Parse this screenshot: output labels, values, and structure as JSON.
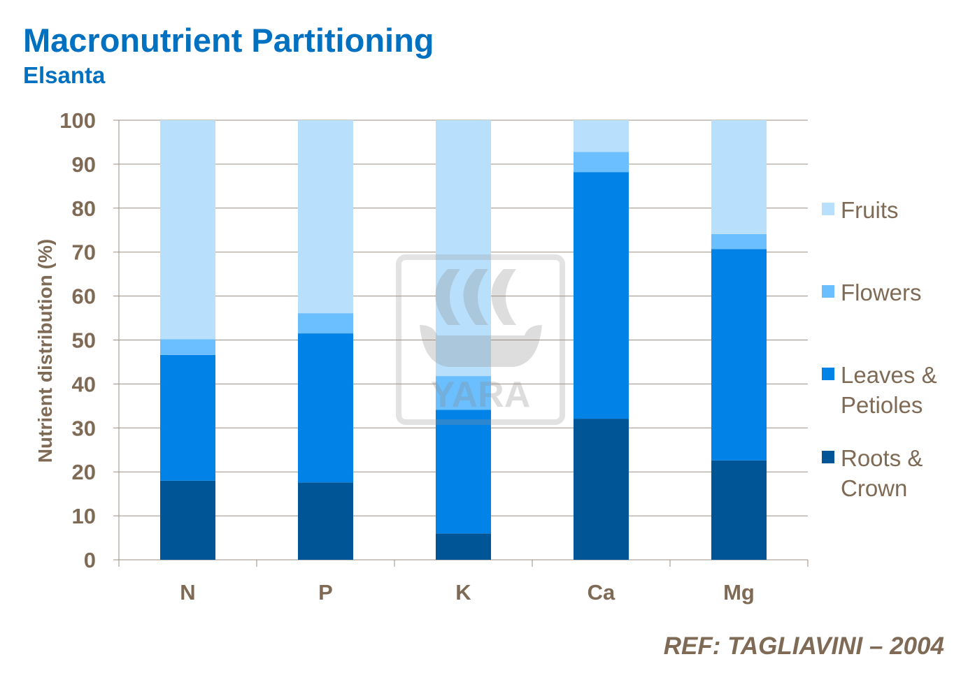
{
  "title": "Macronutrient Partitioning",
  "subtitle": "Elsanta",
  "reference": "REF: TAGLIAVINI – 2004",
  "watermark": "YARA",
  "chart_data": {
    "type": "bar",
    "stacked": true,
    "categories": [
      "N",
      "P",
      "K",
      "Ca",
      "Mg"
    ],
    "ylabel": "Nutrient distribution (%)",
    "ylim": [
      0,
      100
    ],
    "yticks": [
      0,
      10,
      20,
      30,
      40,
      50,
      60,
      70,
      80,
      90,
      100
    ],
    "grid": true,
    "legend_position": "right",
    "series": [
      {
        "name": "Roots & Crown",
        "color": "#005596",
        "values": [
          18.0,
          17.6,
          6.0,
          32.1,
          22.6
        ]
      },
      {
        "name": "Leaves & Petioles",
        "color": "#0082e6",
        "values": [
          28.6,
          33.9,
          28.1,
          56.1,
          48.1
        ]
      },
      {
        "name": "Flowers",
        "color": "#6bbfff",
        "values": [
          3.6,
          4.6,
          7.7,
          4.6,
          3.4
        ]
      },
      {
        "name": "Fruits",
        "color": "#b8e0fd",
        "values": [
          49.8,
          43.9,
          58.2,
          7.2,
          25.9
        ]
      }
    ],
    "legend_lines": [
      [
        "Fruits"
      ],
      [
        "Flowers"
      ],
      [
        "Leaves &",
        "Petioles"
      ],
      [
        "Roots &",
        "Crown"
      ]
    ]
  }
}
